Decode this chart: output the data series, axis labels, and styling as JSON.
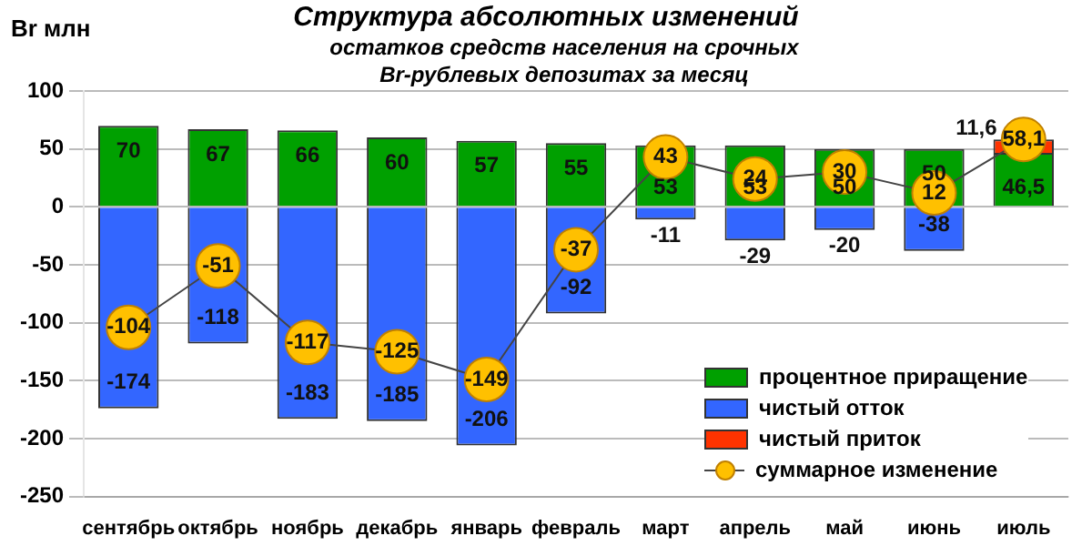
{
  "chart_data": {
    "type": "bar",
    "title": "Структура абсолютных изменений",
    "subtitle": "остатков средств населения на срочных Br-рублевых депозитах за месяц",
    "ylabel": "Br млн",
    "categories": [
      "сентябрь",
      "октябрь",
      "ноябрь",
      "декабрь",
      "январь",
      "февраль",
      "март",
      "апрель",
      "май",
      "июнь",
      "июль"
    ],
    "stacked": true,
    "ylim": [
      -250,
      100
    ],
    "yticks": [
      -250,
      -200,
      -150,
      -100,
      -50,
      0,
      50,
      100
    ],
    "grid": "y",
    "legend": "bottom right",
    "series": [
      {
        "name": "процентное приращение",
        "color": "#00a000",
        "values": [
          70,
          67,
          66,
          60,
          57,
          55,
          53,
          53,
          50,
          50,
          46.5
        ],
        "value_labels": [
          "70",
          "67",
          "66",
          "60",
          "57",
          "55",
          "53",
          "53",
          "50",
          "50",
          "46,5"
        ]
      },
      {
        "name": "чистый отток",
        "color": "#3366ff",
        "values": [
          -174,
          -118,
          -183,
          -185,
          -206,
          -92,
          -11,
          -29,
          -20,
          -38,
          null
        ],
        "value_labels": [
          "-174",
          "-118",
          "-183",
          "-185",
          "-206",
          "-92",
          "-11",
          "-29",
          "-20",
          "-38",
          null
        ]
      },
      {
        "name": "чистый приток",
        "color": "#ff3300",
        "values": [
          null,
          null,
          null,
          null,
          null,
          null,
          null,
          null,
          null,
          null,
          11.6
        ],
        "value_labels": [
          null,
          null,
          null,
          null,
          null,
          null,
          null,
          null,
          null,
          null,
          "11,6"
        ]
      },
      {
        "name": "суммарное изменение",
        "type": "line",
        "color": "#ffc000",
        "marker": "circle",
        "values": [
          -104,
          -51,
          -117,
          -125,
          -149,
          -37,
          43,
          24,
          30,
          12,
          58.1
        ],
        "value_labels": [
          "-104",
          "-51",
          "-117",
          "-125",
          "-149",
          "-37",
          "43",
          "24",
          "30",
          "12",
          "58,1"
        ]
      }
    ]
  }
}
